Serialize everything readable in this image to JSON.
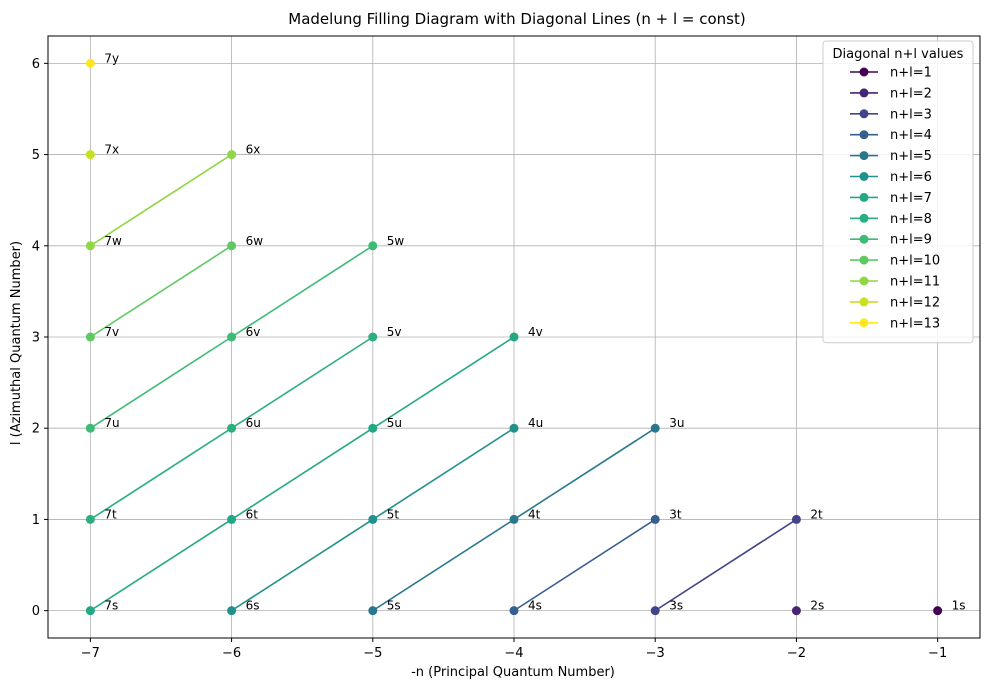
{
  "chart_data": {
    "type": "line",
    "title": "Madelung Filling Diagram with Diagonal Lines (n + l = const)",
    "xlabel": "-n (Principal Quantum Number)",
    "ylabel": "l (Azimuthal Quantum Number)",
    "xlim": [
      -7.3,
      -0.7
    ],
    "ylim": [
      -0.3,
      6.3
    ],
    "x_ticks": [
      -7,
      -6,
      -5,
      -4,
      -3,
      -2,
      -1
    ],
    "y_ticks": [
      0,
      1,
      2,
      3,
      4,
      5,
      6
    ],
    "x_tick_labels": [
      "−7",
      "−6",
      "−5",
      "−4",
      "−3",
      "−2",
      "−1"
    ],
    "y_tick_labels": [
      "0",
      "1",
      "2",
      "3",
      "4",
      "5",
      "6"
    ],
    "grid": true,
    "legend_title": "Diagonal n+l values",
    "legend_position": "top-right",
    "series": [
      {
        "name": "n+l=1",
        "color": "#440154",
        "points": [
          {
            "x": -1,
            "y": 0,
            "label": "1s"
          }
        ]
      },
      {
        "name": "n+l=2",
        "color": "#482475",
        "points": [
          {
            "x": -2,
            "y": 0,
            "label": "2s"
          }
        ]
      },
      {
        "name": "n+l=3",
        "color": "#414487",
        "points": [
          {
            "x": -3,
            "y": 0,
            "label": "3s"
          },
          {
            "x": -2,
            "y": 1,
            "label": "2t"
          }
        ]
      },
      {
        "name": "n+l=4",
        "color": "#355f8d",
        "points": [
          {
            "x": -4,
            "y": 0,
            "label": "4s"
          },
          {
            "x": -3,
            "y": 1,
            "label": "3t"
          }
        ]
      },
      {
        "name": "n+l=5",
        "color": "#2a788e",
        "points": [
          {
            "x": -5,
            "y": 0,
            "label": "5s"
          },
          {
            "x": -4,
            "y": 1,
            "label": "4t"
          },
          {
            "x": -3,
            "y": 2,
            "label": "3u"
          }
        ]
      },
      {
        "name": "n+l=6",
        "color": "#21918c",
        "points": [
          {
            "x": -6,
            "y": 0,
            "label": "6s"
          },
          {
            "x": -5,
            "y": 1,
            "label": "5t"
          },
          {
            "x": -4,
            "y": 2,
            "label": "4u"
          }
        ]
      },
      {
        "name": "n+l=7",
        "color": "#22a884",
        "points": [
          {
            "x": -7,
            "y": 0,
            "label": "7s"
          },
          {
            "x": -6,
            "y": 1,
            "label": "6t"
          },
          {
            "x": -5,
            "y": 2,
            "label": "5u"
          },
          {
            "x": -4,
            "y": 3,
            "label": "4v"
          }
        ]
      },
      {
        "name": "n+l=8",
        "color": "#2ab07f",
        "points": [
          {
            "x": -7,
            "y": 1,
            "label": "7t"
          },
          {
            "x": -6,
            "y": 2,
            "label": "6u"
          },
          {
            "x": -5,
            "y": 3,
            "label": "5v"
          }
        ]
      },
      {
        "name": "n+l=9",
        "color": "#3bbb75",
        "points": [
          {
            "x": -7,
            "y": 2,
            "label": "7u"
          },
          {
            "x": -6,
            "y": 3,
            "label": "6v"
          },
          {
            "x": -5,
            "y": 4,
            "label": "5w"
          }
        ]
      },
      {
        "name": "n+l=10",
        "color": "#5ec962",
        "points": [
          {
            "x": -7,
            "y": 3,
            "label": "7v"
          },
          {
            "x": -6,
            "y": 4,
            "label": "6w"
          }
        ]
      },
      {
        "name": "n+l=11",
        "color": "#8fd744",
        "points": [
          {
            "x": -7,
            "y": 4,
            "label": "7w"
          },
          {
            "x": -6,
            "y": 5,
            "label": "6x"
          }
        ]
      },
      {
        "name": "n+l=12",
        "color": "#c8e020",
        "points": [
          {
            "x": -7,
            "y": 5,
            "label": "7x"
          }
        ]
      },
      {
        "name": "n+l=13",
        "color": "#fde725",
        "points": [
          {
            "x": -7,
            "y": 6,
            "label": "7y"
          }
        ]
      }
    ]
  }
}
